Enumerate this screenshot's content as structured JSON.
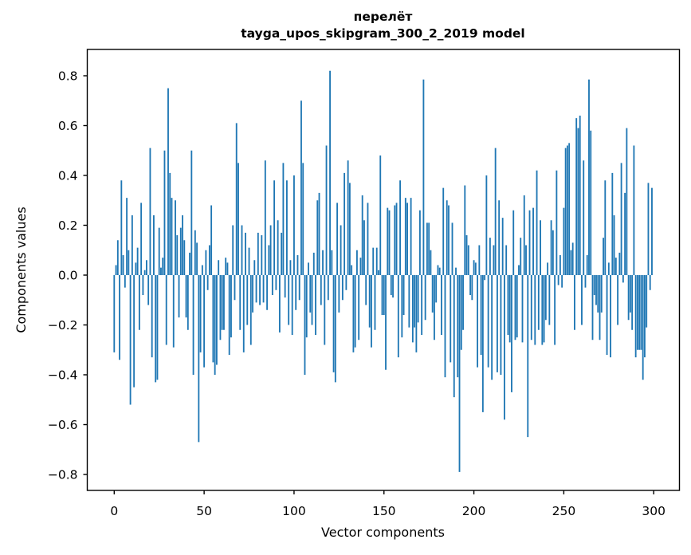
{
  "figure": {
    "title_line1": "перелёт",
    "title_line2": "tayga_upos_skipgram_300_2_2019 model",
    "xlabel": "Vector components",
    "ylabel": "Components values"
  },
  "chart_data": {
    "type": "bar",
    "title": "перелёт\ntayga_upos_skipgram_300_2_2019 model",
    "xlabel": "Vector components",
    "ylabel": "Components values",
    "bar_color": "#1f77b4",
    "axis_color": "#000000",
    "background_color": "#ffffff",
    "grid": false,
    "legend": "none",
    "x_ticks": [
      0,
      50,
      100,
      150,
      200,
      250,
      300
    ],
    "x_tick_labels": [
      "0",
      "50",
      "100",
      "150",
      "200",
      "250",
      "300"
    ],
    "y_ticks": [
      0.8,
      0.6,
      0.4,
      0.2,
      0.0,
      -0.2,
      -0.4,
      -0.6,
      -0.8
    ],
    "y_tick_labels": [
      "0.8",
      "0.6",
      "0.4",
      "0.2",
      "0.0",
      "−0.2",
      "−0.4",
      "−0.6",
      "−0.8"
    ],
    "xlim": [
      -15.2,
      314.2
    ],
    "ylim": [
      -0.864,
      0.906
    ],
    "x_start_index": 0,
    "values": [
      -0.31,
      0.04,
      0.14,
      -0.34,
      0.38,
      0.08,
      -0.05,
      0.31,
      0.1,
      -0.52,
      0.24,
      -0.45,
      0.05,
      0.11,
      -0.22,
      0.29,
      -0.08,
      0.02,
      0.06,
      -0.12,
      0.51,
      -0.33,
      0.24,
      -0.43,
      -0.42,
      0.19,
      0.03,
      0.07,
      0.5,
      -0.28,
      0.75,
      0.41,
      0.31,
      -0.29,
      0.3,
      0.16,
      -0.17,
      0.19,
      0.24,
      0.14,
      -0.17,
      -0.22,
      0.09,
      0.5,
      -0.4,
      0.18,
      0.13,
      -0.67,
      -0.31,
      0.04,
      -0.37,
      0.1,
      -0.06,
      0.12,
      0.28,
      -0.35,
      -0.4,
      -0.36,
      0.06,
      -0.26,
      -0.22,
      -0.22,
      0.07,
      0.05,
      -0.32,
      -0.25,
      0.2,
      -0.1,
      0.61,
      0.45,
      -0.22,
      0.2,
      -0.31,
      0.17,
      -0.2,
      0.11,
      -0.28,
      -0.15,
      0.06,
      -0.11,
      0.17,
      -0.12,
      0.16,
      -0.11,
      0.46,
      -0.14,
      0.12,
      0.2,
      -0.08,
      0.38,
      -0.06,
      0.22,
      -0.23,
      0.17,
      0.45,
      -0.09,
      0.38,
      -0.2,
      0.06,
      -0.24,
      0.4,
      -0.14,
      0.08,
      -0.1,
      0.7,
      0.45,
      -0.4,
      -0.25,
      0.05,
      -0.15,
      -0.2,
      0.09,
      -0.24,
      0.3,
      0.33,
      -0.12,
      0.1,
      -0.28,
      0.52,
      -0.1,
      0.82,
      0.1,
      -0.39,
      -0.43,
      0.29,
      -0.15,
      0.2,
      -0.1,
      0.41,
      -0.06,
      0.46,
      0.37,
      0.04,
      -0.31,
      -0.29,
      0.1,
      -0.26,
      0.07,
      0.32,
      0.22,
      -0.12,
      0.29,
      -0.21,
      -0.29,
      0.11,
      -0.22,
      0.11,
      0.02,
      0.48,
      -0.16,
      -0.16,
      -0.38,
      0.27,
      0.26,
      -0.08,
      -0.09,
      0.28,
      0.29,
      -0.33,
      0.38,
      -0.25,
      -0.16,
      0.31,
      0.29,
      -0.21,
      0.31,
      -0.27,
      -0.21,
      -0.31,
      -0.19,
      0.26,
      -0.24,
      0.785,
      -0.18,
      0.21,
      0.21,
      0.1,
      -0.15,
      -0.26,
      -0.11,
      0.04,
      0.03,
      -0.24,
      0.35,
      -0.41,
      0.3,
      0.28,
      -0.35,
      0.21,
      -0.49,
      0.03,
      -0.41,
      -0.79,
      -0.3,
      -0.22,
      0.36,
      0.16,
      0.12,
      -0.08,
      -0.1,
      0.06,
      0.05,
      -0.37,
      0.12,
      -0.32,
      -0.55,
      -0.02,
      0.4,
      -0.37,
      0.15,
      -0.42,
      0.12,
      0.51,
      -0.39,
      0.3,
      -0.4,
      0.23,
      -0.58,
      0.12,
      -0.24,
      -0.27,
      -0.47,
      0.26,
      -0.26,
      -0.25,
      0.04,
      0.15,
      -0.27,
      0.32,
      0.12,
      -0.65,
      0.26,
      -0.26,
      0.27,
      -0.28,
      0.42,
      -0.22,
      0.22,
      -0.28,
      -0.27,
      -0.18,
      0.05,
      -0.2,
      0.22,
      0.18,
      -0.28,
      0.42,
      -0.04,
      0.08,
      -0.05,
      0.27,
      0.51,
      0.52,
      0.53,
      0.1,
      0.13,
      -0.22,
      0.63,
      0.59,
      0.64,
      -0.2,
      0.46,
      -0.05,
      0.08,
      0.785,
      0.58,
      -0.26,
      -0.08,
      -0.12,
      -0.15,
      -0.26,
      -0.15,
      0.15,
      0.38,
      -0.32,
      0.05,
      -0.33,
      0.41,
      0.24,
      0.07,
      -0.2,
      0.09,
      0.45,
      -0.03,
      0.33,
      0.59,
      -0.18,
      -0.15,
      -0.22,
      0.52,
      -0.33,
      -0.3,
      -0.3,
      -0.3,
      -0.42,
      -0.33,
      -0.21,
      0.37,
      -0.06,
      0.35
    ]
  }
}
